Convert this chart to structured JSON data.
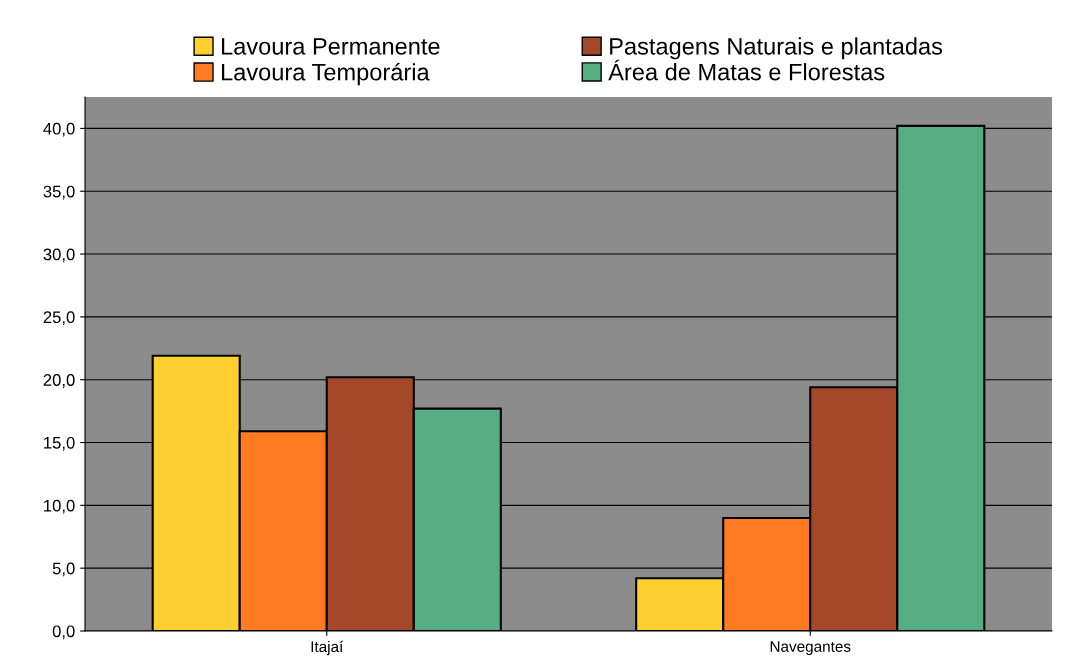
{
  "chart_data": {
    "type": "bar",
    "categories": [
      "Itajaí",
      "Navegantes"
    ],
    "series": [
      {
        "name": "Lavoura Permanente",
        "color": "#ffd030",
        "values": [
          21.9,
          4.2
        ]
      },
      {
        "name": "Lavoura Temporária",
        "color": "#ff7a20",
        "values": [
          15.9,
          9.0
        ]
      },
      {
        "name": "Pastagens Naturais e plantadas",
        "color": "#a5482a",
        "values": [
          20.2,
          19.4
        ]
      },
      {
        "name": "Área de Matas e Florestas",
        "color": "#55ad82",
        "values": [
          17.7,
          40.2
        ]
      }
    ],
    "ylim": [
      0,
      42.5
    ],
    "yticks": [
      {
        "value": 0,
        "label": "0,0"
      },
      {
        "value": 5,
        "label": "5,0"
      },
      {
        "value": 10,
        "label": "10,0"
      },
      {
        "value": 15,
        "label": "15,0"
      },
      {
        "value": 20,
        "label": "20,0"
      },
      {
        "value": 25,
        "label": "25,0"
      },
      {
        "value": 30,
        "label": "30,0"
      },
      {
        "value": 35,
        "label": "35,0"
      },
      {
        "value": 40,
        "label": "40,0"
      }
    ],
    "grid": "y",
    "legend": "top"
  }
}
